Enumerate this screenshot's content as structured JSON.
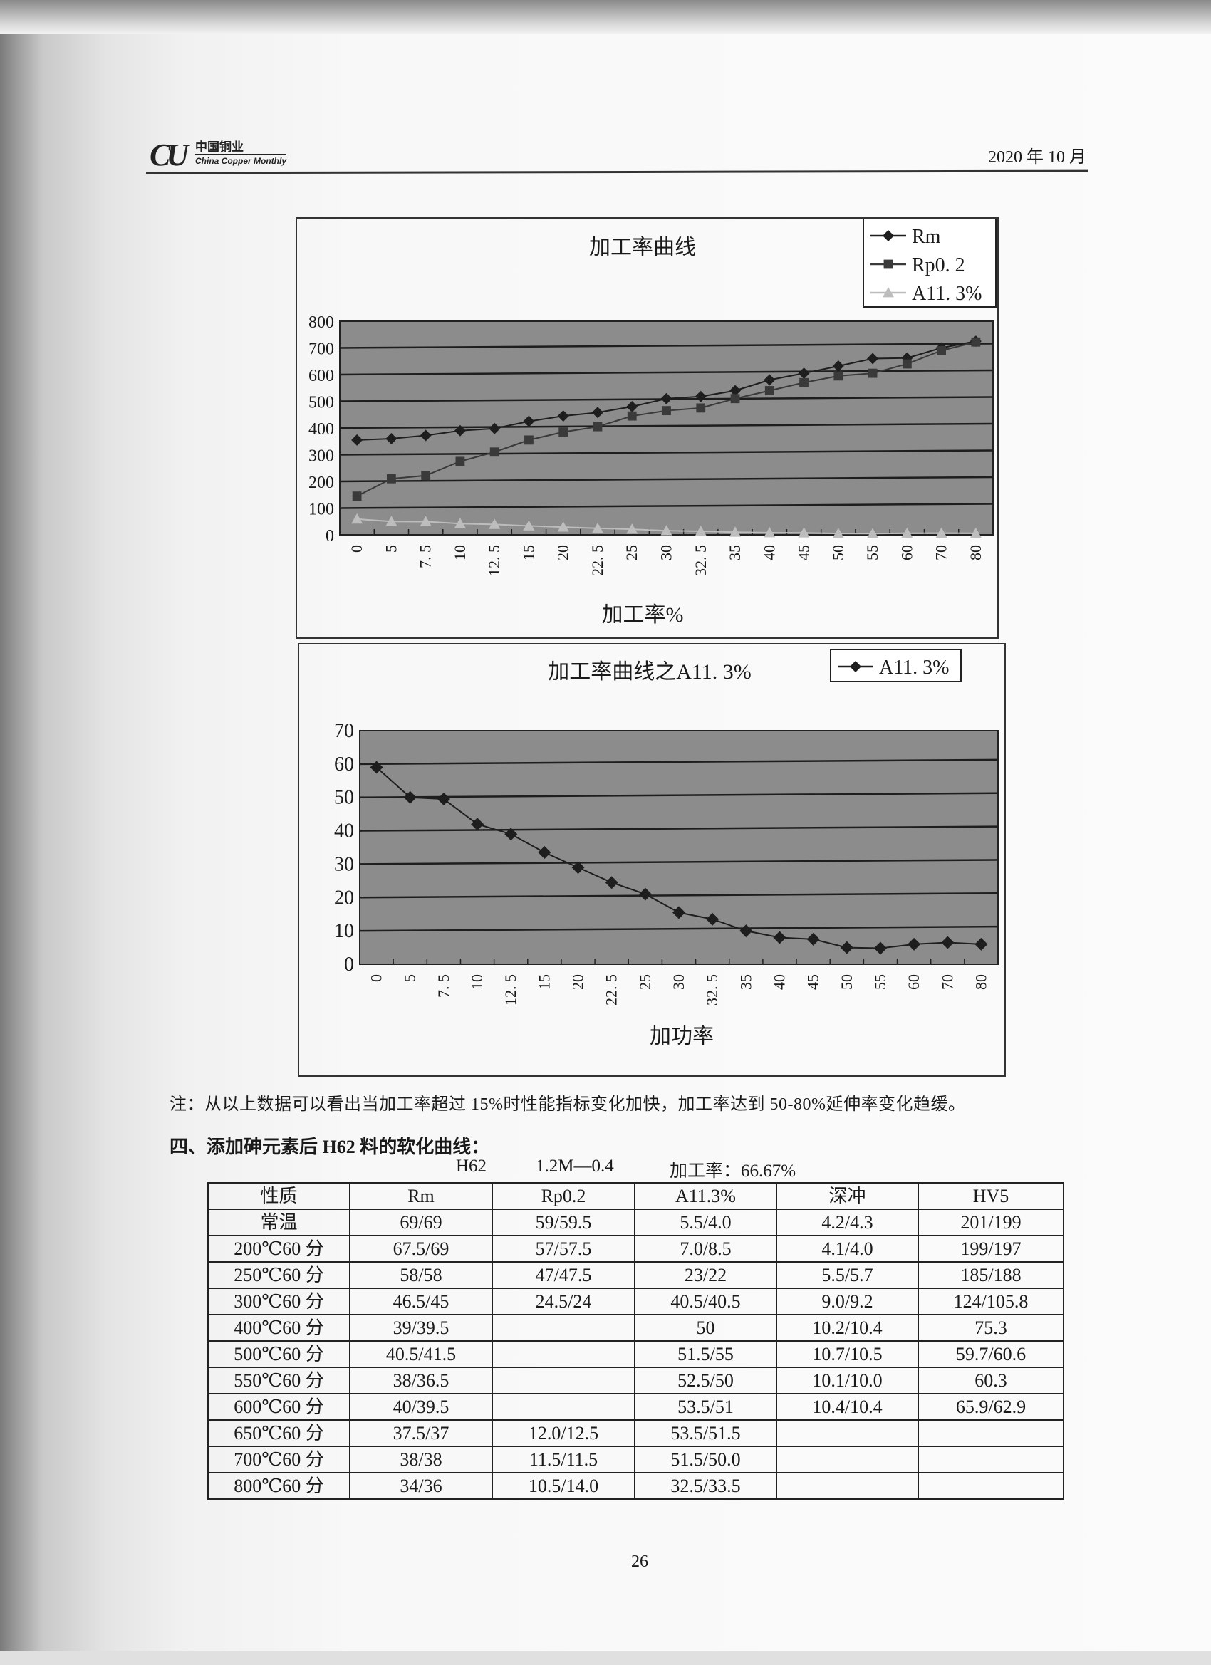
{
  "header": {
    "logo_mark": "CU",
    "logo_cn": "中国铜业",
    "logo_en": "China Copper Monthly",
    "date": "2020 年 10 月"
  },
  "chart_data": [
    {
      "type": "line",
      "title": "加工率曲线",
      "xlabel": "加工率%",
      "ylabel": "",
      "ylim": [
        0,
        800
      ],
      "yticks": [
        "0",
        "100",
        "200",
        "300",
        "400",
        "500",
        "600",
        "700",
        "800"
      ],
      "grid": true,
      "legend_position": "top-right",
      "categories": [
        "0",
        "5",
        "7. 5",
        "10",
        "12. 5",
        "15",
        "20",
        "22. 5",
        "25",
        "30",
        "32. 5",
        "35",
        "40",
        "45",
        "50",
        "55",
        "60",
        "70",
        "80"
      ],
      "series": [
        {
          "name": "Rm",
          "marker": "diamond",
          "color": "#1e1e1e",
          "values": [
            355,
            360,
            372,
            390,
            398,
            425,
            445,
            458,
            480,
            510,
            518,
            540,
            580,
            605,
            632,
            660,
            662,
            700,
            725
          ]
        },
        {
          "name": "Rp0. 2",
          "marker": "square",
          "color": "#3a3a3a",
          "values": [
            145,
            210,
            222,
            275,
            310,
            355,
            385,
            405,
            445,
            465,
            475,
            510,
            540,
            570,
            595,
            605,
            640,
            690,
            722
          ]
        },
        {
          "name": "A11. 3%",
          "marker": "triangle",
          "color": "#bdbdbd",
          "values": [
            59,
            50,
            49.5,
            42,
            39,
            33.5,
            29,
            24.5,
            21,
            15.5,
            13.5,
            10,
            8,
            7.5,
            5,
            4.8,
            6,
            6.5,
            6
          ]
        }
      ]
    },
    {
      "type": "line",
      "title": "加工率曲线之A11. 3%",
      "xlabel": "加功率",
      "ylabel": "",
      "ylim": [
        0,
        70
      ],
      "yticks": [
        "0",
        "10",
        "20",
        "30",
        "40",
        "50",
        "60",
        "70"
      ],
      "grid": true,
      "legend_position": "top-right",
      "categories": [
        "0",
        "5",
        "7. 5",
        "10",
        "12. 5",
        "15",
        "20",
        "22. 5",
        "25",
        "30",
        "32. 5",
        "35",
        "40",
        "45",
        "50",
        "55",
        "60",
        "70",
        "80"
      ],
      "series": [
        {
          "name": "A11. 3%",
          "marker": "diamond",
          "color": "#1e1e1e",
          "values": [
            59,
            50,
            49.5,
            42,
            39,
            33.5,
            29,
            24.5,
            21,
            15.5,
            13.5,
            10,
            8,
            7.5,
            5,
            4.8,
            6,
            6.5,
            6
          ]
        }
      ]
    }
  ],
  "colors": {
    "plot_bg": "#8c8c8c",
    "gridline": "#1e1e1e"
  },
  "note": "注：从以上数据可以看出当加工率超过 15%时性能指标变化加快，加工率达到 50-80%延伸率变化趋缓。",
  "section_heading": "四、添加砷元素后 H62 料的软化曲线：",
  "table_caption": {
    "alloy": "H62",
    "spec": "1.2M—0.4",
    "rate": "加工率：66.67%"
  },
  "table": {
    "headers": [
      "性质",
      "Rm",
      "Rp0.2",
      "A11.3%",
      "深冲",
      "HV5"
    ],
    "rows": [
      [
        "常温",
        "69/69",
        "59/59.5",
        "5.5/4.0",
        "4.2/4.3",
        "201/199"
      ],
      [
        "200℃60 分",
        "67.5/69",
        "57/57.5",
        "7.0/8.5",
        "4.1/4.0",
        "199/197"
      ],
      [
        "250℃60 分",
        "58/58",
        "47/47.5",
        "23/22",
        "5.5/5.7",
        "185/188"
      ],
      [
        "300℃60 分",
        "46.5/45",
        "24.5/24",
        "40.5/40.5",
        "9.0/9.2",
        "124/105.8"
      ],
      [
        "400℃60 分",
        "39/39.5",
        "",
        "50",
        "10.2/10.4",
        "75.3"
      ],
      [
        "500℃60 分",
        "40.5/41.5",
        "",
        "51.5/55",
        "10.7/10.5",
        "59.7/60.6"
      ],
      [
        "550℃60 分",
        "38/36.5",
        "",
        "52.5/50",
        "10.1/10.0",
        "60.3"
      ],
      [
        "600℃60 分",
        "40/39.5",
        "",
        "53.5/51",
        "10.4/10.4",
        "65.9/62.9"
      ],
      [
        "650℃60 分",
        "37.5/37",
        "12.0/12.5",
        "53.5/51.5",
        "",
        ""
      ],
      [
        "700℃60 分",
        "38/38",
        "11.5/11.5",
        "51.5/50.0",
        "",
        ""
      ],
      [
        "800℃60 分",
        "34/36",
        "10.5/14.0",
        "32.5/33.5",
        "",
        ""
      ]
    ]
  },
  "page_number": "26"
}
